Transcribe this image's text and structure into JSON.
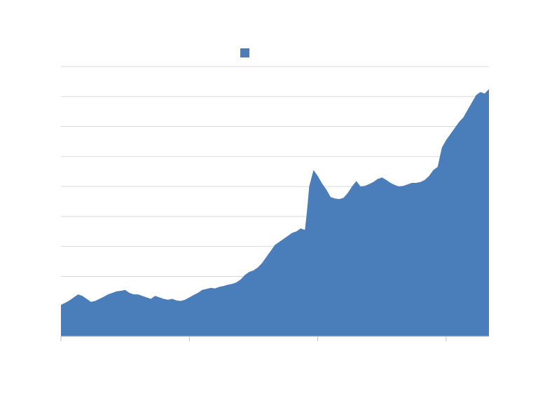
{
  "chart_data": {
    "type": "area",
    "title": "",
    "xlabel": "",
    "ylabel": "",
    "xlim": [
      0,
      100
    ],
    "ylim": [
      0,
      9
    ],
    "y_gridlines": [
      1,
      2,
      3,
      4,
      5,
      6,
      7,
      8,
      9
    ],
    "x_ticks": [
      0,
      30,
      60,
      90
    ],
    "grid": true,
    "legend": {
      "position": "top-center",
      "entries": [
        ""
      ]
    },
    "colors": {
      "series": "#4a7ebb",
      "grid": "#d9d9d9",
      "axis": "#bfbfbf"
    },
    "series": [
      {
        "name": "",
        "x": [
          0,
          1,
          2,
          3,
          4,
          5,
          6,
          7,
          8,
          9,
          10,
          11,
          12,
          13,
          14,
          15,
          16,
          17,
          18,
          19,
          20,
          21,
          22,
          23,
          24,
          25,
          26,
          27,
          28,
          29,
          30,
          31,
          32,
          33,
          34,
          35,
          36,
          37,
          38,
          39,
          40,
          41,
          42,
          43,
          44,
          45,
          46,
          47,
          48,
          49,
          50,
          51,
          52,
          53,
          54,
          55,
          56,
          57,
          57.5,
          58,
          59,
          60,
          61,
          62,
          63,
          64,
          65,
          66,
          67,
          68,
          69,
          70,
          71,
          72,
          73,
          74,
          75,
          76,
          77,
          78,
          79,
          80,
          81,
          82,
          83,
          84,
          85,
          86,
          87,
          88,
          89,
          90,
          91,
          92,
          93,
          94,
          95,
          96,
          97,
          98,
          99,
          100
        ],
        "values": [
          1.05,
          1.12,
          1.2,
          1.3,
          1.4,
          1.35,
          1.25,
          1.15,
          1.18,
          1.25,
          1.32,
          1.4,
          1.45,
          1.5,
          1.52,
          1.55,
          1.45,
          1.4,
          1.4,
          1.35,
          1.3,
          1.25,
          1.35,
          1.3,
          1.25,
          1.22,
          1.25,
          1.2,
          1.18,
          1.22,
          1.3,
          1.38,
          1.45,
          1.55,
          1.58,
          1.62,
          1.6,
          1.65,
          1.68,
          1.72,
          1.75,
          1.8,
          1.9,
          2.05,
          2.15,
          2.2,
          2.3,
          2.45,
          2.65,
          2.85,
          3.05,
          3.15,
          3.25,
          3.35,
          3.45,
          3.5,
          3.6,
          3.55,
          4.2,
          5.0,
          5.55,
          5.35,
          5.1,
          4.9,
          4.65,
          4.6,
          4.58,
          4.62,
          4.78,
          5.0,
          5.18,
          5.0,
          5.02,
          5.08,
          5.15,
          5.25,
          5.3,
          5.22,
          5.12,
          5.05,
          5.0,
          5.02,
          5.07,
          5.12,
          5.12,
          5.15,
          5.22,
          5.35,
          5.55,
          5.65,
          6.3,
          6.55,
          6.75,
          6.95,
          7.15,
          7.3,
          7.55,
          7.8,
          8.05,
          8.15,
          8.1,
          8.25
        ]
      }
    ]
  }
}
